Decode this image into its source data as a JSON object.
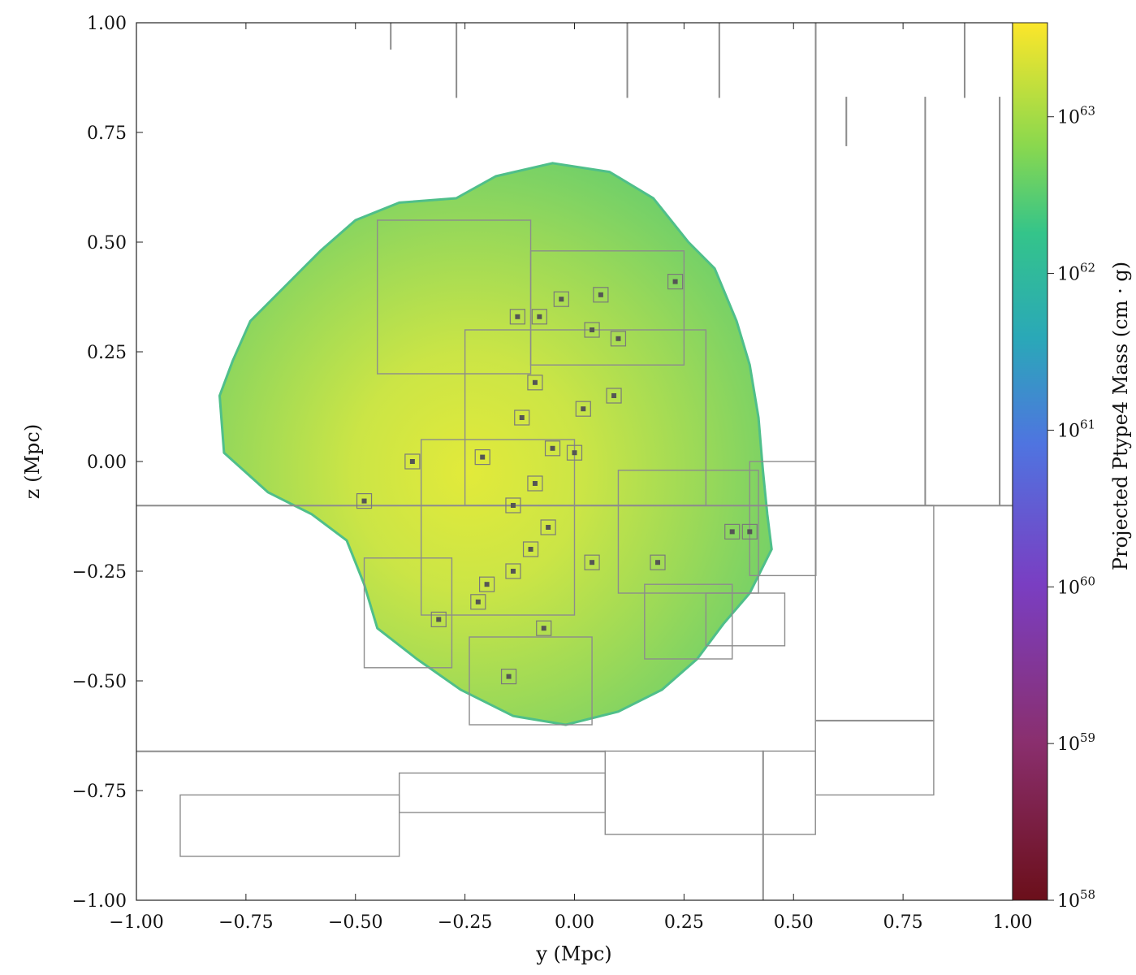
{
  "chart_data": {
    "type": "heatmap",
    "title": "",
    "xlabel": "y  (Mpc)",
    "ylabel": "z  (Mpc)",
    "xlim": [
      -1.0,
      1.0
    ],
    "ylim": [
      -1.0,
      1.0
    ],
    "xticks": [
      -1.0,
      -0.75,
      -0.5,
      -0.25,
      0.0,
      0.25,
      0.5,
      0.75,
      1.0
    ],
    "xtick_labels": [
      "−1.00",
      "−0.75",
      "−0.50",
      "−0.25",
      "0.00",
      "0.25",
      "0.50",
      "0.75",
      "1.00"
    ],
    "yticks": [
      -1.0,
      -0.75,
      -0.5,
      -0.25,
      0.0,
      0.25,
      0.5,
      0.75,
      1.0
    ],
    "ytick_labels": [
      "−1.00",
      "−0.75",
      "−0.50",
      "−0.25",
      "0.00",
      "0.25",
      "0.50",
      "0.75",
      "1.00"
    ],
    "colorbar": {
      "label": "Projected Ptype4 Mass  (cm · g)",
      "scale": "log",
      "colormap": "viridis_r",
      "range_exponent": [
        58,
        63.6
      ],
      "ticks": [
        {
          "exp": 58,
          "label": "10^58"
        },
        {
          "exp": 59,
          "label": "10^59"
        },
        {
          "exp": 60,
          "label": "10^60"
        },
        {
          "exp": 61,
          "label": "10^61"
        },
        {
          "exp": 62,
          "label": "10^62"
        },
        {
          "exp": 63,
          "label": "10^63"
        }
      ]
    },
    "mass_distribution": {
      "center": [
        -0.05,
        -0.05
      ],
      "typical_log10_value": 63.2,
      "outline": [
        [
          -0.27,
          0.6
        ],
        [
          -0.18,
          0.65
        ],
        [
          -0.05,
          0.68
        ],
        [
          0.08,
          0.66
        ],
        [
          0.18,
          0.6
        ],
        [
          0.26,
          0.5
        ],
        [
          0.32,
          0.44
        ],
        [
          0.37,
          0.32
        ],
        [
          0.4,
          0.22
        ],
        [
          0.42,
          0.1
        ],
        [
          0.43,
          -0.02
        ],
        [
          0.44,
          -0.12
        ],
        [
          0.45,
          -0.2
        ],
        [
          0.4,
          -0.3
        ],
        [
          0.34,
          -0.37
        ],
        [
          0.28,
          -0.45
        ],
        [
          0.2,
          -0.52
        ],
        [
          0.1,
          -0.57
        ],
        [
          -0.02,
          -0.6
        ],
        [
          -0.14,
          -0.58
        ],
        [
          -0.26,
          -0.52
        ],
        [
          -0.36,
          -0.45
        ],
        [
          -0.45,
          -0.38
        ],
        [
          -0.48,
          -0.28
        ],
        [
          -0.52,
          -0.18
        ],
        [
          -0.6,
          -0.12
        ],
        [
          -0.7,
          -0.07
        ],
        [
          -0.8,
          0.02
        ],
        [
          -0.81,
          0.15
        ],
        [
          -0.78,
          0.23
        ],
        [
          -0.74,
          0.32
        ],
        [
          -0.66,
          0.4
        ],
        [
          -0.58,
          0.48
        ],
        [
          -0.5,
          0.55
        ],
        [
          -0.4,
          0.59
        ]
      ],
      "substructure_points": [
        [
          -0.13,
          0.33
        ],
        [
          -0.08,
          0.33
        ],
        [
          0.04,
          0.3
        ],
        [
          0.1,
          0.28
        ],
        [
          -0.09,
          0.18
        ],
        [
          -0.12,
          0.1
        ],
        [
          0.02,
          0.12
        ],
        [
          -0.05,
          0.03
        ],
        [
          0.0,
          0.02
        ],
        [
          -0.09,
          -0.05
        ],
        [
          -0.14,
          -0.1
        ],
        [
          -0.06,
          -0.15
        ],
        [
          -0.1,
          -0.2
        ],
        [
          -0.14,
          -0.25
        ],
        [
          -0.2,
          -0.28
        ],
        [
          -0.22,
          -0.32
        ],
        [
          -0.31,
          -0.36
        ],
        [
          -0.07,
          -0.38
        ],
        [
          -0.15,
          -0.49
        ],
        [
          0.04,
          -0.23
        ],
        [
          0.19,
          -0.23
        ],
        [
          0.36,
          -0.16
        ],
        [
          0.4,
          -0.16
        ],
        [
          -0.48,
          -0.09
        ],
        [
          -0.37,
          0.0
        ],
        [
          -0.21,
          0.01
        ],
        [
          0.23,
          0.41
        ],
        [
          0.06,
          0.38
        ],
        [
          -0.03,
          0.37
        ],
        [
          0.09,
          0.15
        ]
      ]
    },
    "grid_boxes": [
      [
        -1.0,
        -0.1,
        1.0,
        -0.1
      ],
      [
        -0.42,
        0.94,
        -0.42,
        1.0
      ],
      [
        0.55,
        -0.1,
        0.55,
        1.0
      ],
      [
        -0.27,
        0.83,
        -0.27,
        1.0
      ],
      [
        0.12,
        0.83,
        0.12,
        1.0
      ],
      [
        0.33,
        0.83,
        0.33,
        1.0
      ],
      [
        0.89,
        0.83,
        0.89,
        1.0
      ],
      [
        0.8,
        -0.1,
        0.8,
        0.83
      ],
      [
        0.97,
        -0.1,
        0.97,
        0.83
      ],
      [
        0.62,
        0.72,
        0.62,
        0.83
      ],
      [
        -0.9,
        -0.9,
        -0.4,
        -0.76
      ],
      [
        -1.0,
        -0.66,
        0.07,
        -0.66
      ],
      [
        -0.4,
        -0.8,
        0.07,
        -0.71
      ],
      [
        0.07,
        -0.85,
        0.55,
        -0.66
      ],
      [
        0.55,
        -0.76,
        0.82,
        -0.1
      ],
      [
        0.55,
        -0.59,
        0.82,
        -0.59
      ],
      [
        0.43,
        -1.0,
        0.43,
        -0.66
      ],
      [
        0.55,
        -0.26,
        0.55,
        -0.1
      ],
      [
        0.4,
        -0.26,
        0.55,
        0.0
      ],
      [
        -0.48,
        -0.47,
        -0.28,
        -0.22
      ],
      [
        -0.24,
        -0.6,
        0.04,
        -0.4
      ],
      [
        0.16,
        -0.45,
        0.36,
        -0.28
      ],
      [
        0.3,
        -0.42,
        0.48,
        -0.3
      ],
      [
        -0.45,
        0.2,
        -0.1,
        0.55
      ],
      [
        -0.1,
        0.22,
        0.25,
        0.48
      ],
      [
        -0.25,
        -0.1,
        0.3,
        0.3
      ],
      [
        -0.35,
        -0.35,
        0.0,
        0.05
      ],
      [
        0.1,
        -0.3,
        0.42,
        -0.02
      ]
    ]
  }
}
